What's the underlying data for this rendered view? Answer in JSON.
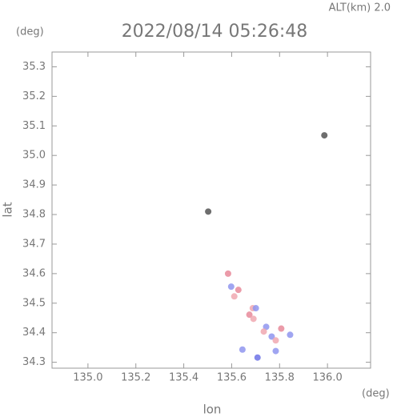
{
  "chart_data": {
    "type": "scatter",
    "title": "2022/08/14 05:26:48",
    "altitude_label": "ALT(km) 2.0",
    "y_unit": "(deg)",
    "x_unit": "(deg)",
    "xlabel": "lon",
    "ylabel": "lat",
    "xlim": [
      134.85,
      136.18
    ],
    "ylim": [
      34.28,
      35.35
    ],
    "xticks": [
      {
        "value": 135.0,
        "label": "135.0"
      },
      {
        "value": 135.2,
        "label": "135.2"
      },
      {
        "value": 135.4,
        "label": "135.4"
      },
      {
        "value": 135.6,
        "label": "135.6"
      },
      {
        "value": 135.8,
        "label": "135.8"
      },
      {
        "value": 136.0,
        "label": "136.0"
      }
    ],
    "yticks": [
      {
        "value": 34.3,
        "label": "34.3"
      },
      {
        "value": 34.4,
        "label": "34.4"
      },
      {
        "value": 34.5,
        "label": "34.5"
      },
      {
        "value": 34.6,
        "label": "34.6"
      },
      {
        "value": 34.7,
        "label": "34.7"
      },
      {
        "value": 34.8,
        "label": "34.8"
      },
      {
        "value": 34.9,
        "label": "34.9"
      },
      {
        "value": 35.0,
        "label": "35.0"
      },
      {
        "value": 35.1,
        "label": "35.1"
      },
      {
        "value": 35.2,
        "label": "35.2"
      },
      {
        "value": 35.3,
        "label": "35.3"
      }
    ],
    "x": [
      135.585,
      135.598,
      135.611,
      135.628,
      135.688,
      135.701,
      135.674,
      135.691,
      135.744,
      135.734,
      135.767,
      135.807,
      135.784,
      135.784,
      135.708,
      135.645,
      135.844,
      135.502,
      135.987
    ],
    "y": [
      34.6,
      34.556,
      34.523,
      34.545,
      34.483,
      34.483,
      34.461,
      34.447,
      34.42,
      34.404,
      34.387,
      34.414,
      34.374,
      34.338,
      34.316,
      34.343,
      34.393,
      34.81,
      35.068
    ],
    "colors": [
      "#e88a9a",
      "#8f95ee",
      "#f0a8b0",
      "#e88a9a",
      "#f0a8b0",
      "#8f95ee",
      "#e88a9a",
      "#f0a8b0",
      "#8f95ee",
      "#f0a8b0",
      "#8f95ee",
      "#e88a9a",
      "#f0a8b0",
      "#8f95ee",
      "#6d73e6",
      "#8f95ee",
      "#8f95ee",
      "#555555",
      "#555555"
    ]
  }
}
